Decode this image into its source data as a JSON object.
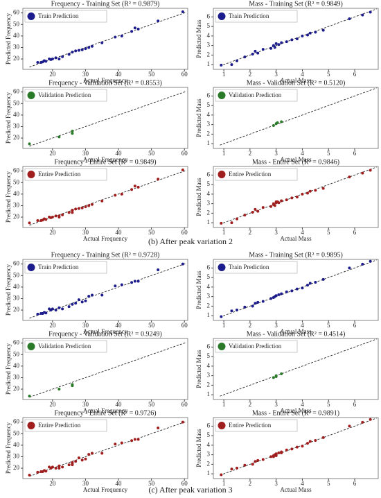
{
  "captions": [
    "(b) After peak variation 2",
    "(c) After peak variation 3"
  ],
  "chart_data": [
    {
      "type": "scatter",
      "title": "Frequency - Training Set (R² = 0.9879)",
      "x_label": "Actual Frequency",
      "y_label": "Predicted Frequency",
      "xlim": [
        11,
        61
      ],
      "ylim": [
        11,
        64
      ],
      "xticks": [
        20,
        30,
        40,
        50,
        60
      ],
      "yticks": [
        20,
        30,
        40,
        50,
        60
      ],
      "legend": "upper left",
      "reference_line": true,
      "series": [
        {
          "name": "Train Prediction",
          "color": "#1c1c8c",
          "x": [
            15.5,
            16.5,
            17,
            17.5,
            18,
            19,
            19.5,
            20,
            21,
            22,
            23,
            25,
            26,
            27,
            28,
            29,
            30,
            31,
            32,
            35,
            39,
            41,
            44,
            45,
            46,
            52,
            59.5
          ],
          "values": [
            17,
            17,
            17.5,
            18.5,
            18,
            20,
            19.5,
            20,
            21,
            20,
            22,
            24,
            26,
            27,
            27.5,
            28,
            29,
            30,
            31,
            34,
            39,
            40,
            44,
            47,
            46,
            53,
            61
          ]
        }
      ]
    },
    {
      "type": "scatter",
      "title": "Mass - Training Set (R² = 0.9849)",
      "x_label": "Actual Mass",
      "y_label": "Predicted Mass",
      "xlim": [
        0.6,
        6.9
      ],
      "ylim": [
        0.5,
        6.9
      ],
      "xticks": [
        1,
        2,
        3,
        4,
        5,
        6
      ],
      "yticks": [
        1,
        2,
        3,
        4,
        5,
        6
      ],
      "legend": "upper left",
      "reference_line": true,
      "series": [
        {
          "name": "Train Prediction",
          "color": "#1c1c8c",
          "x": [
            0.9,
            1.3,
            1.5,
            1.8,
            2.1,
            2.2,
            2.3,
            2.5,
            2.8,
            2.9,
            2.95,
            3.0,
            3.1,
            3.2,
            3.4,
            3.6,
            3.8,
            4.0,
            4.2,
            4.3,
            4.5,
            4.8,
            5.8,
            6.3,
            6.6
          ],
          "values": [
            0.95,
            1.0,
            1.4,
            1.8,
            2.1,
            2.4,
            2.2,
            2.6,
            2.7,
            3.0,
            2.8,
            3.2,
            3.1,
            3.3,
            3.4,
            3.6,
            3.7,
            4.0,
            4.1,
            4.3,
            4.4,
            4.6,
            5.8,
            6.2,
            6.5
          ]
        }
      ]
    },
    {
      "type": "scatter",
      "title": "Frequency - Validation Set (R² = 0.8553)",
      "x_label": "Actual Frequency",
      "y_label": "Predicted Frequency",
      "xlim": [
        11,
        61
      ],
      "ylim": [
        11,
        64
      ],
      "xticks": [
        20,
        30,
        40,
        50,
        60
      ],
      "yticks": [
        20,
        30,
        40,
        50,
        60
      ],
      "legend": "upper left",
      "reference_line": true,
      "series": [
        {
          "name": "Validation Prediction",
          "color": "#2a7a2a",
          "x": [
            13,
            22,
            26,
            26
          ],
          "values": [
            15,
            21,
            24,
            26
          ]
        }
      ]
    },
    {
      "type": "scatter",
      "title": "Mass - Validation Set (R² = 0.5120)",
      "x_label": "Actual Mass",
      "y_label": "Predicted Mass",
      "xlim": [
        0.6,
        6.9
      ],
      "ylim": [
        0.5,
        6.9
      ],
      "xticks": [
        1,
        2,
        3,
        4,
        5,
        6
      ],
      "yticks": [
        1,
        2,
        3,
        4,
        5,
        6
      ],
      "legend": "upper left",
      "reference_line": true,
      "series": [
        {
          "name": "Validation Prediction",
          "color": "#2a7a2a",
          "x": [
            2.9,
            3.0,
            3.05,
            3.2
          ],
          "values": [
            2.9,
            3.1,
            3.2,
            3.3
          ]
        }
      ]
    },
    {
      "type": "scatter",
      "title": "Frequency - Entire Set (R² = 0.9849)",
      "x_label": "Actual Frequency",
      "y_label": "Predicted Frequency",
      "xlim": [
        11,
        61
      ],
      "ylim": [
        11,
        64
      ],
      "xticks": [
        20,
        30,
        40,
        50,
        60
      ],
      "yticks": [
        20,
        30,
        40,
        50,
        60
      ],
      "legend": "upper left",
      "reference_line": true,
      "series": [
        {
          "name": "Entire Prediction",
          "color": "#a01e1e",
          "x": [
            15.5,
            16.5,
            17,
            17.5,
            18,
            19,
            19.5,
            20,
            21,
            22,
            23,
            25,
            26,
            27,
            28,
            29,
            30,
            31,
            32,
            35,
            39,
            41,
            44,
            45,
            46,
            52,
            59.5,
            13,
            22,
            26,
            26
          ],
          "values": [
            17,
            17,
            17.5,
            18.5,
            18,
            20,
            19.5,
            20,
            21,
            20,
            22,
            24,
            26,
            27,
            27.5,
            28,
            29,
            30,
            31,
            34,
            39,
            40,
            44,
            47,
            46,
            53,
            61,
            15,
            21,
            24,
            26
          ]
        }
      ]
    },
    {
      "type": "scatter",
      "title": "Mass - Entire Set (R² = 0.9846)",
      "x_label": "Actual Mass",
      "y_label": "Predicted Mass",
      "xlim": [
        0.6,
        6.9
      ],
      "ylim": [
        0.5,
        6.9
      ],
      "xticks": [
        1,
        2,
        3,
        4,
        5,
        6
      ],
      "yticks": [
        1,
        2,
        3,
        4,
        5,
        6
      ],
      "legend": "upper left",
      "reference_line": true,
      "series": [
        {
          "name": "Entire Prediction",
          "color": "#a01e1e",
          "x": [
            0.9,
            1.3,
            1.5,
            1.8,
            2.1,
            2.2,
            2.3,
            2.5,
            2.8,
            2.9,
            2.95,
            3.0,
            3.1,
            3.2,
            3.4,
            3.6,
            3.8,
            4.0,
            4.2,
            4.3,
            4.5,
            4.8,
            5.8,
            6.3,
            6.6,
            2.9,
            3.0,
            3.05,
            3.2
          ],
          "values": [
            0.95,
            1.0,
            1.4,
            1.8,
            2.1,
            2.4,
            2.2,
            2.6,
            2.7,
            3.0,
            2.8,
            3.2,
            3.1,
            3.3,
            3.4,
            3.6,
            3.7,
            4.0,
            4.1,
            4.3,
            4.4,
            4.6,
            5.8,
            6.2,
            6.5,
            2.9,
            3.1,
            3.2,
            3.3
          ]
        }
      ]
    },
    {
      "type": "scatter",
      "title": "Frequency - Training Set (R² = 0.9728)",
      "x_label": "Actual Frequency",
      "y_label": "Predicted Frequency",
      "xlim": [
        11,
        61
      ],
      "ylim": [
        11,
        64
      ],
      "xticks": [
        20,
        30,
        40,
        50,
        60
      ],
      "yticks": [
        20,
        30,
        40,
        50,
        60
      ],
      "legend": "upper left",
      "reference_line": true,
      "series": [
        {
          "name": "Train Prediction",
          "color": "#1c1c8c",
          "x": [
            15.5,
            16.5,
            17,
            17.5,
            18,
            19,
            19.5,
            20,
            21,
            22,
            23,
            25,
            26,
            27,
            28,
            29,
            30,
            31,
            32,
            35,
            39,
            41,
            44,
            45,
            46,
            52,
            59.5
          ],
          "values": [
            16.5,
            17,
            17,
            18,
            17.5,
            21,
            20,
            21,
            20,
            22,
            21,
            23,
            25,
            26,
            29,
            27,
            28,
            32,
            33,
            33,
            41,
            42,
            44,
            45,
            45,
            55,
            60
          ]
        }
      ]
    },
    {
      "type": "scatter",
      "title": "Mass - Training Set (R² = 0.9895)",
      "x_label": "Actual Mass",
      "y_label": "Predicted Mass",
      "xlim": [
        0.6,
        6.9
      ],
      "ylim": [
        0.5,
        6.9
      ],
      "xticks": [
        1,
        2,
        3,
        4,
        5,
        6
      ],
      "yticks": [
        1,
        2,
        3,
        4,
        5,
        6
      ],
      "legend": "upper left",
      "reference_line": true,
      "series": [
        {
          "name": "Train Prediction",
          "color": "#1c1c8c",
          "x": [
            0.9,
            1.3,
            1.5,
            1.8,
            2.1,
            2.2,
            2.3,
            2.5,
            2.8,
            2.9,
            2.95,
            3.0,
            3.1,
            3.2,
            3.4,
            3.6,
            3.8,
            4.0,
            4.2,
            4.3,
            4.5,
            4.8,
            5.8,
            6.3,
            6.6
          ],
          "values": [
            0.9,
            1.5,
            1.6,
            1.9,
            2.0,
            2.3,
            2.4,
            2.5,
            2.8,
            2.9,
            3.0,
            3.1,
            3.2,
            3.3,
            3.5,
            3.6,
            3.8,
            3.9,
            4.2,
            4.4,
            4.5,
            4.8,
            6.0,
            6.4,
            6.7
          ]
        }
      ]
    },
    {
      "type": "scatter",
      "title": "Frequency - Validation Set (R² = 0.9249)",
      "x_label": "Actual Frequency",
      "y_label": "Predicted Frequency",
      "xlim": [
        11,
        61
      ],
      "ylim": [
        11,
        64
      ],
      "xticks": [
        20,
        30,
        40,
        50,
        60
      ],
      "yticks": [
        20,
        30,
        40,
        50,
        60
      ],
      "legend": "upper left",
      "reference_line": true,
      "series": [
        {
          "name": "Validation Prediction",
          "color": "#2a7a2a",
          "x": [
            13,
            22,
            26,
            26
          ],
          "values": [
            14,
            20,
            23,
            24
          ]
        }
      ]
    },
    {
      "type": "scatter",
      "title": "Mass - Validation Set (R² = 0.4514)",
      "x_label": "Actual Mass",
      "y_label": "Predicted Mass",
      "xlim": [
        0.6,
        6.9
      ],
      "ylim": [
        0.5,
        6.9
      ],
      "xticks": [
        1,
        2,
        3,
        4,
        5,
        6
      ],
      "yticks": [
        1,
        2,
        3,
        4,
        5,
        6
      ],
      "legend": "upper left",
      "reference_line": true,
      "series": [
        {
          "name": "Validation Prediction",
          "color": "#2a7a2a",
          "x": [
            2.9,
            3.0,
            3.0,
            3.2
          ],
          "values": [
            2.8,
            2.9,
            3.0,
            3.2
          ]
        }
      ]
    },
    {
      "type": "scatter",
      "title": "Frequency - Entire Set (R² = 0.9726)",
      "x_label": "Actual Frequency",
      "y_label": "Predicted Frequency",
      "xlim": [
        11,
        61
      ],
      "ylim": [
        11,
        64
      ],
      "xticks": [
        20,
        30,
        40,
        50,
        60
      ],
      "yticks": [
        20,
        30,
        40,
        50,
        60
      ],
      "legend": "upper left",
      "reference_line": true,
      "series": [
        {
          "name": "Entire Prediction",
          "color": "#a01e1e",
          "x": [
            15.5,
            16.5,
            17,
            17.5,
            18,
            19,
            19.5,
            20,
            21,
            22,
            23,
            25,
            26,
            27,
            28,
            29,
            30,
            31,
            32,
            35,
            39,
            41,
            44,
            45,
            46,
            52,
            59.5,
            13,
            22,
            26,
            26
          ],
          "values": [
            16.5,
            17,
            17,
            18,
            17.5,
            21,
            20,
            21,
            20,
            22,
            21,
            23,
            25,
            26,
            29,
            27,
            28,
            32,
            33,
            33,
            41,
            42,
            44,
            45,
            45,
            55,
            60,
            14,
            20,
            23,
            24
          ]
        }
      ]
    },
    {
      "type": "scatter",
      "title": "Mass - Entire Set (R² = 0.9891)",
      "x_label": "Actual Mass",
      "y_label": "Predicted Mass",
      "xlim": [
        0.6,
        6.9
      ],
      "ylim": [
        0.5,
        6.9
      ],
      "xticks": [
        1,
        2,
        3,
        4,
        5,
        6
      ],
      "yticks": [
        1,
        2,
        3,
        4,
        5,
        6
      ],
      "legend": "upper left",
      "reference_line": true,
      "series": [
        {
          "name": "Entire Prediction",
          "color": "#a01e1e",
          "x": [
            0.9,
            1.3,
            1.5,
            1.8,
            2.1,
            2.2,
            2.3,
            2.5,
            2.8,
            2.9,
            2.95,
            3.0,
            3.1,
            3.2,
            3.4,
            3.6,
            3.8,
            4.0,
            4.2,
            4.3,
            4.5,
            4.8,
            5.8,
            6.3,
            6.6,
            2.9,
            3.0,
            3.0,
            3.2
          ],
          "values": [
            0.9,
            1.5,
            1.6,
            1.9,
            2.0,
            2.3,
            2.4,
            2.5,
            2.8,
            2.9,
            3.0,
            3.1,
            3.2,
            3.3,
            3.5,
            3.6,
            3.8,
            3.9,
            4.2,
            4.4,
            4.5,
            4.8,
            6.0,
            6.4,
            6.7,
            2.8,
            2.9,
            3.0,
            3.2
          ]
        }
      ]
    }
  ]
}
